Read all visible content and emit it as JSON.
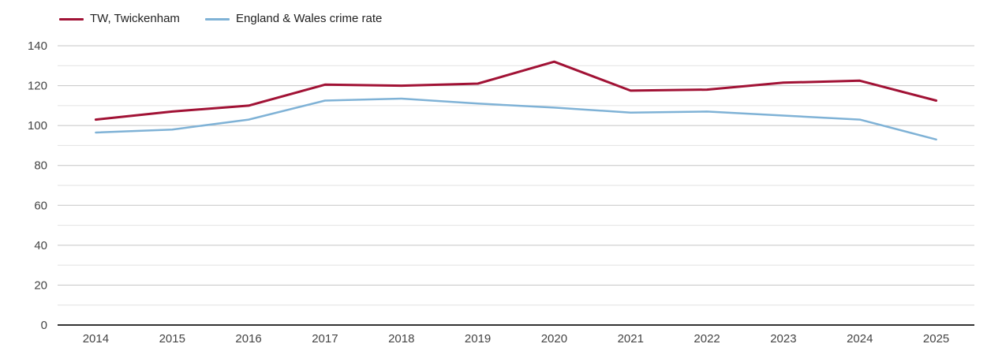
{
  "chart_data": {
    "type": "line",
    "title": "",
    "xlabel": "",
    "ylabel": "",
    "x": [
      "2014",
      "2015",
      "2016",
      "2017",
      "2018",
      "2019",
      "2020",
      "2021",
      "2022",
      "2023",
      "2024",
      "2025"
    ],
    "series": [
      {
        "name": "TW, Twickenham",
        "color": "#a11235",
        "values": [
          103,
          107,
          110,
          120.5,
          120,
          121,
          132,
          117.5,
          118,
          121.5,
          122.5,
          112.5
        ]
      },
      {
        "name": "England & Wales crime rate",
        "color": "#7fb2d6",
        "values": [
          96.5,
          98,
          103,
          112.5,
          113.5,
          111,
          109,
          106.5,
          107,
          105,
          103,
          93
        ]
      }
    ],
    "ylim": [
      0,
      140
    ],
    "ytick_step": 20,
    "minor_grid_step": 10,
    "yticks": [
      "0",
      "20",
      "40",
      "60",
      "80",
      "100",
      "120",
      "140"
    ],
    "grid": "on",
    "legend_position": "top-left",
    "colors": {
      "major_grid": "#c5c5c5",
      "minor_grid": "#e2e2e2",
      "axis_line": "#333333",
      "tick_label": "#444444"
    }
  }
}
